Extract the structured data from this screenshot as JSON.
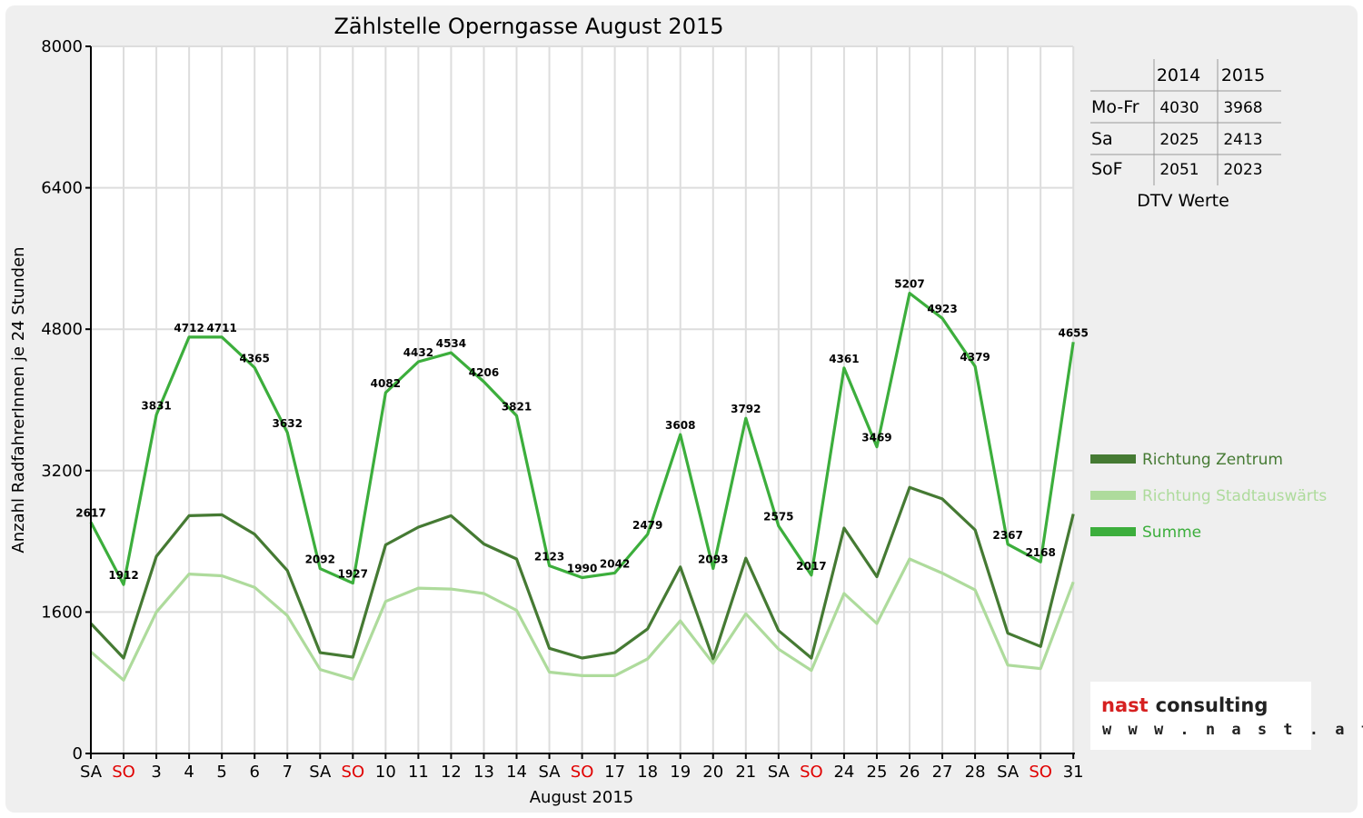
{
  "chart_data": {
    "type": "line",
    "title": "Zählstelle Operngasse August 2015",
    "xlabel": "August 2015",
    "ylabel": "Anzahl RadfahrerInnen je 24 Stunden",
    "ylim": [
      0,
      8000
    ],
    "yticks": [
      "0",
      "1600",
      "3200",
      "4800",
      "6400",
      "8000"
    ],
    "grid": true,
    "legend_position": "right",
    "categories": [
      "SA",
      "SO",
      "3",
      "4",
      "5",
      "6",
      "7",
      "SA",
      "SO",
      "10",
      "11",
      "12",
      "13",
      "14",
      "SA",
      "SO",
      "17",
      "18",
      "19",
      "20",
      "21",
      "SA",
      "SO",
      "24",
      "25",
      "26",
      "27",
      "28",
      "SA",
      "SO",
      "31"
    ],
    "weekend_categories": [
      "SO"
    ],
    "series": [
      {
        "name": "Richtung Zentrum",
        "color": "#457a33",
        "values": [
          1470,
          1080,
          2230,
          2690,
          2700,
          2480,
          2070,
          1140,
          1090,
          2360,
          2560,
          2690,
          2370,
          2200,
          1190,
          1080,
          1140,
          1410,
          2110,
          1070,
          2210,
          1390,
          1080,
          2550,
          2000,
          3010,
          2880,
          2530,
          1360,
          1210,
          2710
        ]
      },
      {
        "name": "Richtung Stadtauswärts",
        "color": "#aedb9c",
        "values": [
          1150,
          830,
          1600,
          2030,
          2010,
          1880,
          1560,
          950,
          840,
          1720,
          1870,
          1860,
          1810,
          1620,
          920,
          880,
          880,
          1070,
          1500,
          1020,
          1580,
          1180,
          940,
          1810,
          1470,
          2200,
          2040,
          1850,
          1000,
          960,
          1940
        ]
      },
      {
        "name": "Summe",
        "color": "#3cae3c",
        "values": [
          2617,
          1912,
          3831,
          4712,
          4711,
          4365,
          3632,
          2092,
          1927,
          4082,
          4432,
          4534,
          4206,
          3821,
          2123,
          1990,
          2042,
          2479,
          3608,
          2093,
          3792,
          2575,
          2017,
          4361,
          3469,
          5207,
          4923,
          4379,
          2367,
          2168,
          4655
        ]
      }
    ],
    "data_labels": [
      "2617",
      "1912",
      "3831",
      "4712",
      "4711",
      "4365",
      "3632",
      "2092",
      "1927",
      "4082",
      "4432",
      "4534",
      "4206",
      "3821",
      "2123",
      "1990",
      "2042",
      "2479",
      "3608",
      "2093",
      "3792",
      "2575",
      "2017",
      "4361",
      "3469",
      "5207",
      "4923",
      "4379",
      "2367",
      "2168",
      "4655"
    ]
  },
  "dtv_table": {
    "columns": [
      "2014",
      "2015"
    ],
    "rows": [
      {
        "label": "Mo-Fr",
        "values": [
          "4030",
          "3968"
        ]
      },
      {
        "label": "Sa",
        "values": [
          "2025",
          "2413"
        ]
      },
      {
        "label": "SoF",
        "values": [
          "2051",
          "2023"
        ]
      }
    ],
    "caption": "DTV Werte"
  },
  "logo": {
    "name": "nast consulting",
    "url": "w w w . n a s t . a t",
    "colors": [
      "#d62020",
      "#222222"
    ]
  }
}
